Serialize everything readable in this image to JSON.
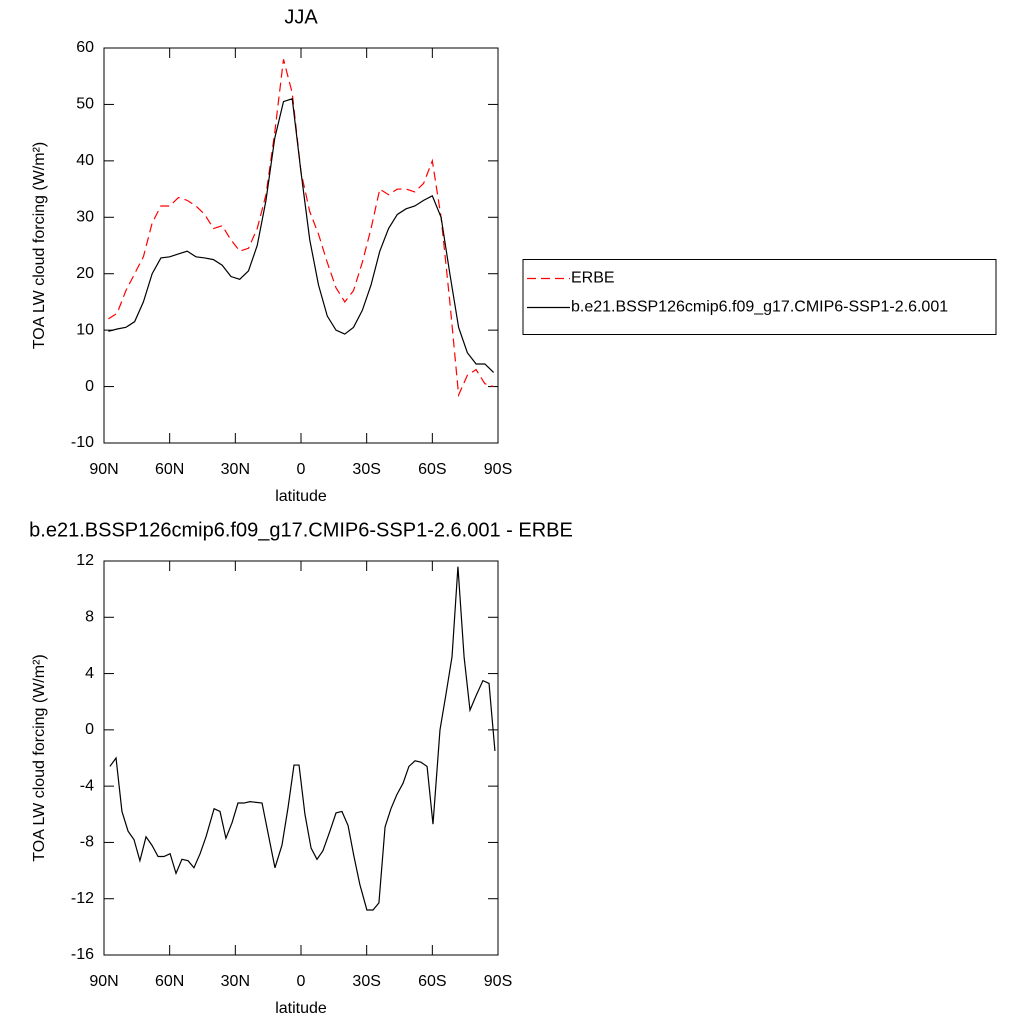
{
  "chart_data": [
    {
      "type": "line",
      "title": "JJA",
      "x_label": "latitude",
      "y_label": "TOA LW cloud forcing (W/m²)",
      "x": [
        88,
        84,
        80,
        76,
        72,
        68,
        64,
        60,
        56,
        52,
        48,
        44,
        40,
        36,
        32,
        28,
        24,
        20,
        16,
        12,
        8,
        4,
        0,
        -4,
        -8,
        -12,
        -16,
        -20,
        -24,
        -28,
        -32,
        -36,
        -40,
        -44,
        -48,
        -52,
        -56,
        -60,
        -64,
        -68,
        -72,
        -76,
        -80,
        -84,
        -88
      ],
      "series": [
        {
          "name": "ERBE",
          "color": "#ff0000",
          "dash": "dashed",
          "values": [
            12,
            13,
            17,
            20,
            23,
            29,
            32,
            32,
            33.5,
            33,
            32,
            30.5,
            28,
            28.5,
            26,
            24,
            24.5,
            28,
            34,
            45,
            58,
            52,
            38,
            31,
            27,
            22,
            17.5,
            15,
            17,
            22,
            28,
            35,
            34,
            35,
            35,
            34.5,
            36,
            40,
            30,
            15,
            -1.5,
            2,
            3,
            0.5,
            0
          ]
        },
        {
          "name": "b.e21.BSSP126cmip6.f09_g17.CMIP6-SSP1-2.6.001",
          "color": "#000000",
          "dash": "solid",
          "values": [
            9.8,
            10.2,
            10.5,
            11.5,
            15,
            20,
            22.8,
            23,
            23.5,
            24,
            23,
            22.8,
            22.5,
            21.5,
            19.5,
            19,
            20.5,
            25,
            33,
            44,
            50.5,
            51,
            38,
            26,
            18,
            12.5,
            10,
            9.3,
            10.5,
            13.5,
            18,
            24,
            28,
            30.5,
            31.5,
            32,
            33,
            33.8,
            30,
            20,
            10.5,
            6,
            4,
            4,
            2.5
          ]
        }
      ],
      "xlim": [
        90,
        -90
      ],
      "xticks": [
        {
          "value": 90,
          "label": "90N"
        },
        {
          "value": 60,
          "label": "60N"
        },
        {
          "value": 30,
          "label": "30N"
        },
        0,
        {
          "value": -30,
          "label": "30S"
        },
        {
          "value": -60,
          "label": "60S"
        },
        {
          "value": -90,
          "label": "90S"
        }
      ],
      "ylim": [
        -10,
        60
      ],
      "yticks": [
        -10,
        0,
        10,
        20,
        30,
        40,
        50,
        60
      ],
      "legend": "right"
    },
    {
      "type": "line",
      "title": "b.e21.BSSP126cmip6.f09_g17.CMIP6-SSP1-2.6.001 - ERBE",
      "x_label": "latitude",
      "y_label": "TOA LW cloud forcing (W/m²)",
      "x": [
        87.3,
        84.5,
        81.8,
        79.0,
        76.3,
        73.6,
        70.8,
        68.1,
        65.3,
        62.6,
        59.8,
        57.1,
        54.4,
        51.6,
        48.9,
        46.1,
        43.4,
        39.7,
        37.0,
        34.3,
        31.5,
        28.8,
        26.0,
        23.3,
        17.8,
        11.9,
        8.7,
        5.9,
        3.2,
        0.9,
        -1.8,
        -4.6,
        -7.3,
        -10.0,
        -13.2,
        -16.0,
        -18.7,
        -21.5,
        -24.2,
        -26.9,
        -30.1,
        -32.9,
        -35.6,
        -38.4,
        -41.1,
        -43.8,
        -46.6,
        -49.3,
        -52.1,
        -54.8,
        -57.6,
        -60.3,
        -63.5,
        -66.2,
        -69.0,
        -71.7,
        -74.5,
        -77.2,
        -79.9,
        -83.1,
        -85.9,
        -88.6
      ],
      "values": [
        -2.6,
        -2.0,
        -5.8,
        -7.2,
        -7.8,
        -9.3,
        -7.6,
        -8.2,
        -9.0,
        -9.0,
        -8.8,
        -10.2,
        -9.2,
        -9.3,
        -9.8,
        -8.8,
        -7.6,
        -5.6,
        -5.8,
        -7.7,
        -6.6,
        -5.2,
        -5.2,
        -5.1,
        -5.2,
        -9.8,
        -8.2,
        -5.5,
        -2.5,
        -2.5,
        -6.0,
        -8.4,
        -9.2,
        -8.6,
        -7.2,
        -5.9,
        -5.8,
        -6.8,
        -9.0,
        -11.0,
        -12.8,
        -12.8,
        -12.3,
        -6.9,
        -5.6,
        -4.6,
        -3.8,
        -2.6,
        -2.2,
        -2.3,
        -2.6,
        -6.7,
        0,
        2.5,
        5.2,
        11.6,
        5.2,
        1.4,
        2.4,
        3.5,
        3.3,
        -1.5
      ],
      "color": "#000000",
      "xlim": [
        90,
        -90
      ],
      "xticks": [
        {
          "value": 90,
          "label": "90N"
        },
        {
          "value": 60,
          "label": "60N"
        },
        {
          "value": 30,
          "label": "30N"
        },
        0,
        {
          "value": -30,
          "label": "30S"
        },
        {
          "value": -60,
          "label": "60S"
        },
        {
          "value": -90,
          "label": "90S"
        }
      ],
      "ylim": [
        -16,
        12
      ],
      "yticks": [
        -16,
        -12,
        -8,
        -4,
        0,
        4,
        8,
        12
      ]
    }
  ]
}
